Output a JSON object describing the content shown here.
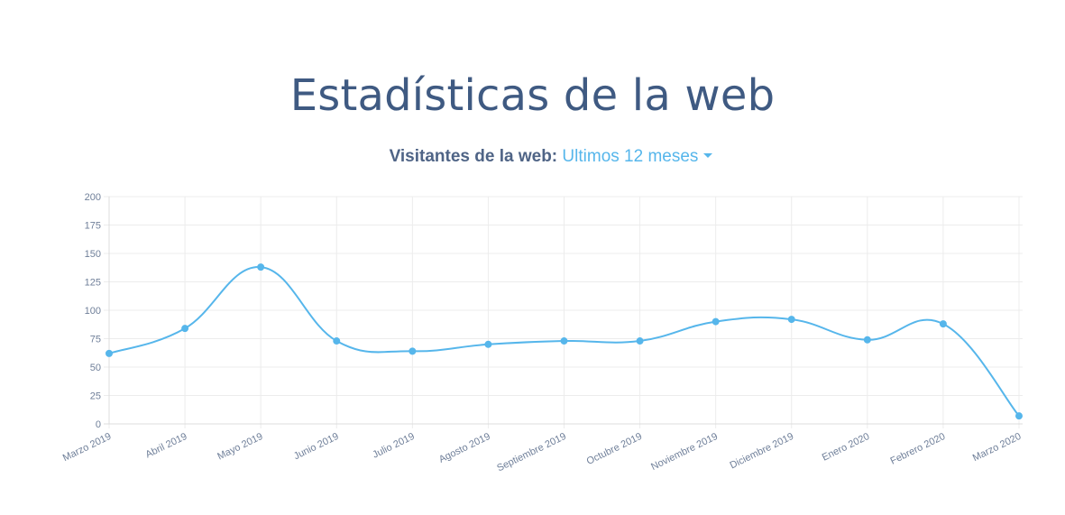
{
  "page": {
    "title": "Estadísticas de la web"
  },
  "chart_header": {
    "label": "Visitantes de la web:",
    "period": "Ultimos 12 meses"
  },
  "colors": {
    "title": "#3f5a82",
    "accent": "#56b6eb",
    "grid": "#ececec",
    "tick_text": "#6f7f99"
  },
  "chart_data": {
    "type": "line",
    "title": "",
    "xlabel": "",
    "ylabel": "",
    "categories": [
      "Marzo 2019",
      "Abril 2019",
      "Mayo 2019",
      "Junio 2019",
      "Julio 2019",
      "Agosto 2019",
      "Septiembre 2019",
      "Octubre 2019",
      "Noviembre 2019",
      "Diciembre 2019",
      "Enero 2020",
      "Febrero 2020",
      "Marzo 2020"
    ],
    "values": [
      62,
      84,
      138,
      73,
      64,
      70,
      73,
      73,
      90,
      92,
      74,
      88,
      7
    ],
    "ylim": [
      0,
      200
    ],
    "yticks": [
      0,
      25,
      50,
      75,
      100,
      125,
      150,
      175,
      200
    ],
    "grid": true,
    "legend": "none",
    "smooth": true
  }
}
